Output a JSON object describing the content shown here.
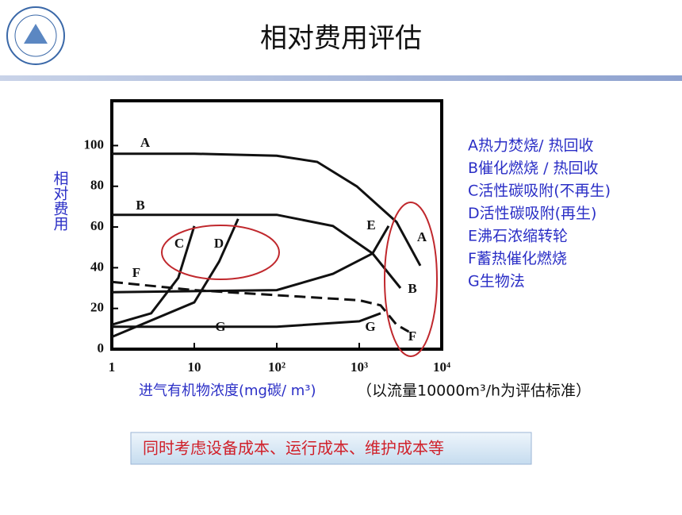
{
  "slide": {
    "title": "相对费用评估",
    "note": "（以流量10000m³/h为评估标准）",
    "callout": "同时考虑设备成本、运行成本、维护成本等",
    "descriptions": [
      "A热力焚烧/ 热回收",
      "B催化燃烧 / 热回收",
      "C活性碳吸附(不再生)",
      "D活性碳吸附(再生)",
      "E沸石浓缩转轮",
      "F蓄热催化燃烧",
      "G生物法"
    ]
  },
  "chart_data": {
    "type": "line",
    "xlabel": "进气有机物浓度(mg碳/ m³)",
    "ylabel": "相对费用",
    "log_x": true,
    "xlim": [
      1,
      10000
    ],
    "xticks": [
      1,
      10,
      {
        "value": 100,
        "label": "10²"
      },
      {
        "value": 1000,
        "label": "10³"
      },
      {
        "value": 10000,
        "label": "10⁴"
      }
    ],
    "ylim": [
      0,
      122
    ],
    "yticks": [
      0,
      20,
      40,
      60,
      80,
      100
    ],
    "series": [
      {
        "name": "A",
        "color": "#111111",
        "x": [
          1,
          10,
          100,
          309,
          933,
          2830,
          5500
        ],
        "values": [
          96,
          96,
          95,
          92,
          80,
          62.5,
          41
        ]
      },
      {
        "name": "B",
        "color": "#111111",
        "x": [
          1,
          10,
          100,
          480,
          1450,
          3160
        ],
        "values": [
          66,
          66,
          66,
          60.5,
          47,
          30
        ]
      },
      {
        "name": "C",
        "color": "#111111",
        "x": [
          1,
          3,
          6.4,
          10
        ],
        "values": [
          12,
          17.6,
          35,
          60.5
        ]
      },
      {
        "name": "D",
        "color": "#111111",
        "x": [
          1,
          10,
          20,
          34
        ],
        "values": [
          6,
          23,
          43,
          64
        ]
      },
      {
        "name": "E",
        "color": "#111111",
        "x": [
          1,
          100,
          480,
          1450,
          2270
        ],
        "values": [
          28,
          29,
          37,
          47,
          60.5
        ]
      },
      {
        "name": "F",
        "color": "#111111",
        "dashed": true,
        "x": [
          1,
          10,
          100,
          1000,
          1820,
          2830,
          3980
        ],
        "values": [
          33,
          29,
          26.5,
          24,
          21.5,
          12,
          8.6
        ]
      },
      {
        "name": "G",
        "color": "#111111",
        "x": [
          1,
          10,
          100,
          1000,
          1820
        ],
        "values": [
          11,
          11,
          11,
          13.7,
          17.6
        ]
      }
    ]
  }
}
